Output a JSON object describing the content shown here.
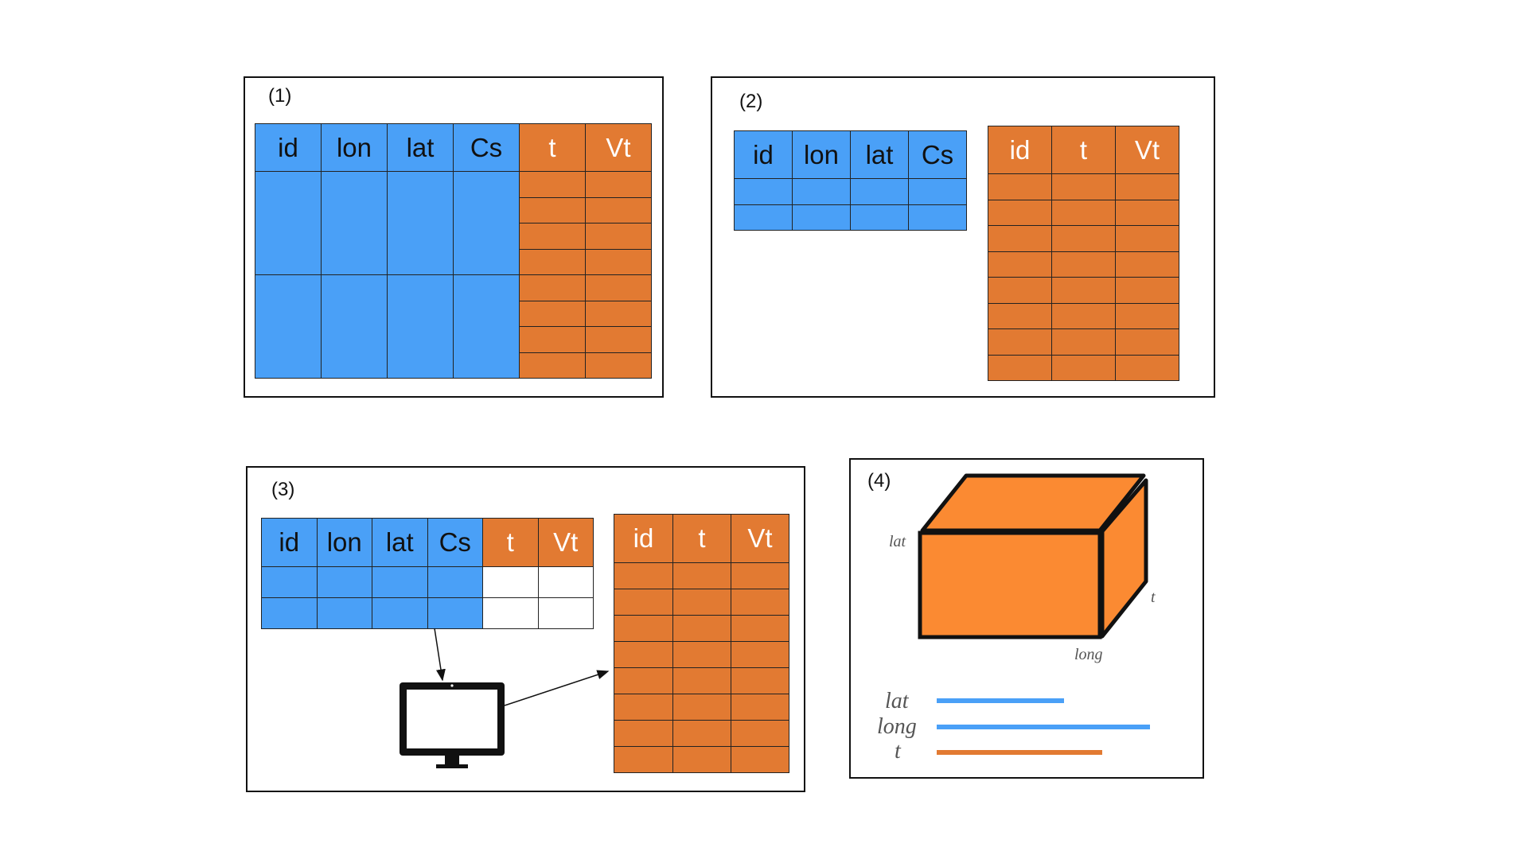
{
  "panels": {
    "p1": {
      "label": "(1)"
    },
    "p2": {
      "label": "(2)"
    },
    "p3": {
      "label": "(3)"
    },
    "p4": {
      "label": "(4)"
    }
  },
  "headers": {
    "blue": [
      "id",
      "lon",
      "lat",
      "Cs"
    ],
    "orange_t_vt": [
      "t",
      "Vt"
    ],
    "orange_id_t_vt": [
      "id",
      "t",
      "Vt"
    ]
  },
  "cube": {
    "lat_label": "lat",
    "t_label": "t",
    "long_label": "long"
  },
  "legend": {
    "items": [
      {
        "label": "lat",
        "color": "#4aa0f7",
        "relative_length": 1.0
      },
      {
        "label": "long",
        "color": "#4aa0f7",
        "relative_length": 1.69
      },
      {
        "label": "t",
        "color": "#e27a32",
        "relative_length": 1.3
      }
    ]
  },
  "colors": {
    "blue": "#4aa0f7",
    "orange": "#e27a32",
    "cube_orange": "#fb8a32"
  },
  "icons": {
    "computer": "desktop-monitor-icon"
  }
}
